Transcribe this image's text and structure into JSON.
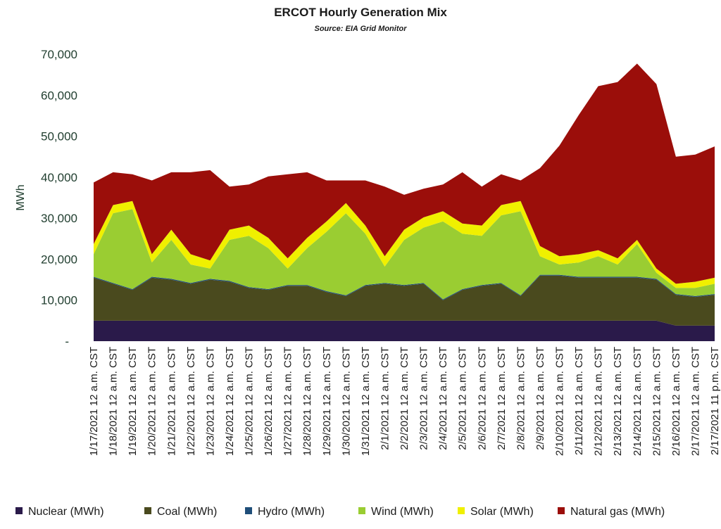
{
  "chart_data": {
    "type": "area",
    "stacked": true,
    "title": "ERCOT Hourly Generation Mix",
    "subtitle": "Source: EIA Grid Monitor",
    "xlabel": "",
    "ylabel": "MWh",
    "ylim": [
      0,
      70000
    ],
    "yticks": [
      10000,
      20000,
      30000,
      40000,
      50000,
      60000,
      70000
    ],
    "ytick_labels": [
      "10,000",
      "20,000",
      "30,000",
      "40,000",
      "50,000",
      "60,000",
      "70,000"
    ],
    "y_zero_label": "-",
    "x_tick_labels": [
      "1/17/2021 12 a.m. CST",
      "1/18/2021 12 a.m. CST",
      "1/19/2021 12 a.m. CST",
      "1/20/2021 12 a.m. CST",
      "1/21/2021 12 a.m. CST",
      "1/22/2021 12 a.m. CST",
      "1/23/2021 12 a.m. CST",
      "1/24/2021 12 a.m. CST",
      "1/25/2021 12 a.m. CST",
      "1/26/2021 12 a.m. CST",
      "1/27/2021 12 a.m. CST",
      "1/28/2021 12 a.m. CST",
      "1/29/2021 12 a.m. CST",
      "1/30/2021 12 a.m. CST",
      "1/31/2021 12 a.m. CST",
      "2/1/2021 12 a.m. CST",
      "2/2/2021 12 a.m. CST",
      "2/3/2021 12 a.m. CST",
      "2/4/2021 12 a.m. CST",
      "2/5/2021 12 a.m. CST",
      "2/6/2021 12 a.m. CST",
      "2/7/2021 12 a.m. CST",
      "2/8/2021 12 a.m. CST",
      "2/9/2021 12 a.m. CST",
      "2/10/2021 12 a.m. CST",
      "2/11/2021 12 a.m. CST",
      "2/12/2021 12 a.m. CST",
      "2/13/2021 12 a.m. CST",
      "2/14/2021 12 a.m. CST",
      "2/15/2021 12 a.m. CST",
      "2/16/2021 12 a.m. CST",
      "2/17/2021 12 a.m. CST",
      "2/17/2021 11 p.m. CST"
    ],
    "x": [
      "1/17",
      "1/18",
      "1/19",
      "1/20",
      "1/21",
      "1/22",
      "1/23",
      "1/24",
      "1/25",
      "1/26",
      "1/27",
      "1/28",
      "1/29",
      "1/30",
      "1/31",
      "2/1",
      "2/2",
      "2/3",
      "2/4",
      "2/5",
      "2/6",
      "2/7",
      "2/8",
      "2/9",
      "2/10",
      "2/11",
      "2/12",
      "2/13",
      "2/14",
      "2/15",
      "2/16",
      "2/17",
      "2/17 11 p.m."
    ],
    "series": [
      {
        "name": "Nuclear (MWh)",
        "color": "#2a1a4a",
        "values": [
          5000,
          5000,
          5000,
          5000,
          5000,
          5000,
          5000,
          5000,
          5000,
          5000,
          5000,
          5000,
          5000,
          5000,
          5000,
          5000,
          5000,
          5000,
          5000,
          5000,
          5000,
          5000,
          5000,
          5000,
          5000,
          5000,
          5000,
          5000,
          5000,
          5000,
          3800,
          3800,
          3800
        ]
      },
      {
        "name": "Coal (MWh)",
        "color": "#4a4a1e",
        "values": [
          10500,
          9000,
          7500,
          10500,
          10000,
          9000,
          10000,
          9500,
          8000,
          7500,
          8500,
          8500,
          7000,
          6000,
          8500,
          9000,
          8500,
          9000,
          5000,
          7500,
          8500,
          9000,
          6000,
          11000,
          11000,
          10500,
          10500,
          10500,
          10500,
          10000,
          7500,
          7000,
          7500
        ]
      },
      {
        "name": "Hydro (MWh)",
        "color": "#1f4e79",
        "values": [
          200,
          200,
          200,
          200,
          200,
          200,
          200,
          200,
          200,
          200,
          200,
          200,
          200,
          200,
          200,
          200,
          200,
          200,
          200,
          200,
          200,
          200,
          200,
          200,
          200,
          200,
          200,
          200,
          200,
          200,
          200,
          200,
          200
        ]
      },
      {
        "name": "Wind (MWh)",
        "color": "#9acd32",
        "values": [
          5500,
          17000,
          19500,
          3500,
          9500,
          4500,
          2500,
          10000,
          12500,
          10000,
          4000,
          9000,
          14500,
          20000,
          12500,
          4000,
          11000,
          13500,
          19000,
          13500,
          12000,
          16500,
          20500,
          4500,
          2500,
          3500,
          5000,
          3000,
          8000,
          1500,
          1500,
          2000,
          2500
        ]
      },
      {
        "name": "Solar (MWh)",
        "color": "#f0f000",
        "values": [
          2500,
          2000,
          2000,
          2000,
          2500,
          2500,
          2000,
          2500,
          2500,
          2500,
          2500,
          2500,
          2500,
          2500,
          2000,
          2500,
          2500,
          2500,
          2500,
          2500,
          2500,
          2500,
          2500,
          2500,
          2000,
          2000,
          1500,
          1500,
          1000,
          1000,
          1000,
          1500,
          1500
        ]
      },
      {
        "name": "Natural gas (MWh)",
        "color": "#9b0e0a",
        "values": [
          15000,
          8000,
          6500,
          18000,
          14000,
          20000,
          22000,
          10500,
          10000,
          15000,
          20500,
          16000,
          10000,
          5500,
          11000,
          17000,
          8500,
          7000,
          6500,
          12500,
          9500,
          7500,
          5000,
          19000,
          27000,
          34000,
          40000,
          43000,
          43000,
          45000,
          31000,
          31000,
          32000
        ]
      }
    ],
    "legend": [
      "Nuclear (MWh)",
      "Coal (MWh)",
      "Hydro (MWh)",
      "Wind (MWh)",
      "Solar (MWh)",
      "Natural gas (MWh)"
    ],
    "legend_position": "bottom",
    "grid": false
  }
}
